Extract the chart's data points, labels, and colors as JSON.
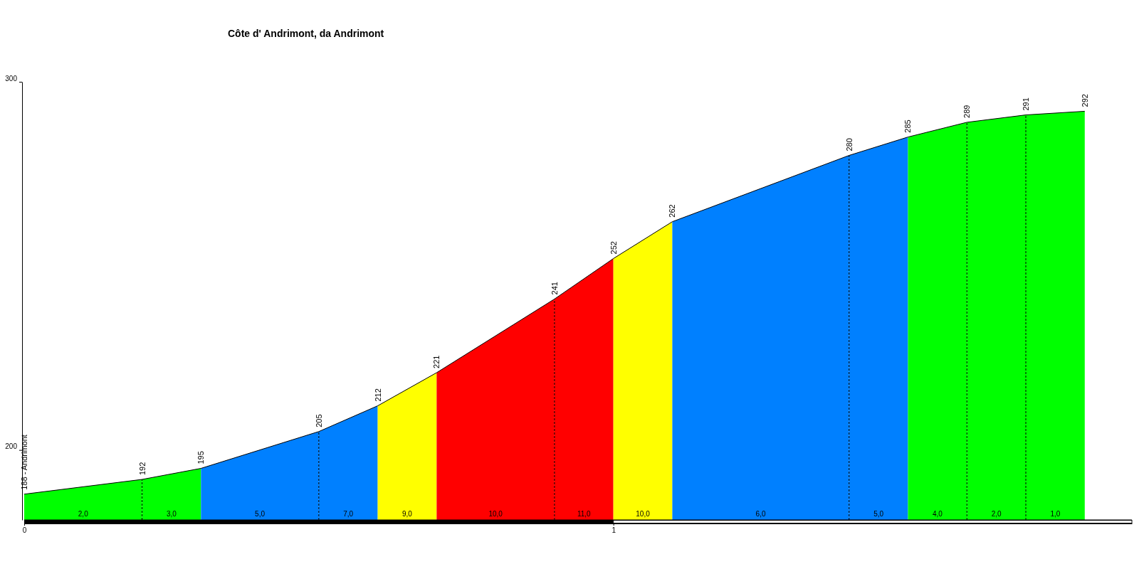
{
  "chart_data": {
    "type": "area",
    "title": "Côte d' Andrimont, da Andrimont",
    "xlim": [
      0,
      1.88
    ],
    "xticks": [
      0,
      1
    ],
    "ylim": [
      181,
      300
    ],
    "yticks": [
      200,
      300
    ],
    "grid": false,
    "series": [
      {
        "color": "#00ff00",
        "x": [
          0,
          0.2
        ],
        "values": [
          188,
          192
        ],
        "value_labels": [
          "188 - Andrimont",
          "192"
        ]
      },
      {
        "color": "#00ff00",
        "x": [
          0.2,
          0.3
        ],
        "values": [
          192,
          195
        ],
        "value_labels": [
          null,
          "195"
        ]
      },
      {
        "color": "#0080ff",
        "x": [
          0.3,
          0.5
        ],
        "values": [
          195,
          205
        ],
        "value_labels": [
          null,
          "205"
        ]
      },
      {
        "color": "#0080ff",
        "x": [
          0.5,
          0.6
        ],
        "values": [
          205,
          212
        ],
        "value_labels": [
          null,
          "212"
        ]
      },
      {
        "color": "#ffff00",
        "x": [
          0.6,
          0.7
        ],
        "values": [
          212,
          221
        ],
        "value_labels": [
          null,
          "221"
        ]
      },
      {
        "color": "#ff0000",
        "x": [
          0.7,
          0.9
        ],
        "values": [
          221,
          241
        ],
        "value_labels": [
          null,
          "241"
        ]
      },
      {
        "color": "#ff0000",
        "x": [
          0.9,
          1.0
        ],
        "values": [
          241,
          252
        ],
        "value_labels": [
          null,
          "252"
        ]
      },
      {
        "color": "#ffff00",
        "x": [
          1.0,
          1.1
        ],
        "values": [
          252,
          262
        ],
        "value_labels": [
          null,
          "262"
        ]
      },
      {
        "color": "#0080ff",
        "x": [
          1.1,
          1.4
        ],
        "values": [
          262,
          280
        ],
        "value_labels": [
          null,
          "280"
        ]
      },
      {
        "color": "#0080ff",
        "x": [
          1.4,
          1.5
        ],
        "values": [
          280,
          285
        ],
        "value_labels": [
          null,
          "285"
        ]
      },
      {
        "color": "#00ff00",
        "x": [
          1.5,
          1.6
        ],
        "values": [
          285,
          289
        ],
        "value_labels": [
          null,
          "289"
        ]
      },
      {
        "color": "#00ff00",
        "x": [
          1.6,
          1.7
        ],
        "values": [
          289,
          291
        ],
        "value_labels": [
          null,
          "291"
        ]
      },
      {
        "color": "#00ff00",
        "x": [
          1.7,
          1.8
        ],
        "values": [
          291,
          292
        ],
        "value_labels": [
          null,
          "292"
        ]
      }
    ],
    "ref_lines": [
      {
        "axis": "x",
        "value": 0.2,
        "color": "#000000",
        "line_style": "dashed"
      },
      {
        "axis": "x",
        "value": 0.5,
        "color": "#000000",
        "line_style": "dashed"
      },
      {
        "axis": "x",
        "value": 0.9,
        "color": "#000000",
        "line_style": "dashed"
      },
      {
        "axis": "x",
        "value": 1.4,
        "color": "#000000",
        "line_style": "dashed"
      },
      {
        "axis": "x",
        "value": 1.6,
        "color": "#000000",
        "line_style": "dashed"
      },
      {
        "axis": "x",
        "value": 1.7,
        "color": "#000000",
        "line_style": "dashed"
      }
    ],
    "annotations": [
      {
        "text": "2,0",
        "x": 0.1,
        "y": 182
      },
      {
        "text": "3,0",
        "x": 0.25,
        "y": 182
      },
      {
        "text": "5,0",
        "x": 0.4,
        "y": 182
      },
      {
        "text": "7,0",
        "x": 0.55,
        "y": 182
      },
      {
        "text": "9,0",
        "x": 0.65,
        "y": 182
      },
      {
        "text": "10,0",
        "x": 0.8,
        "y": 182
      },
      {
        "text": "11,0",
        "x": 0.95,
        "y": 182
      },
      {
        "text": "10,0",
        "x": 1.05,
        "y": 182
      },
      {
        "text": "6,0",
        "x": 1.25,
        "y": 182
      },
      {
        "text": "5,0",
        "x": 1.45,
        "y": 182
      },
      {
        "text": "4,0",
        "x": 1.55,
        "y": 182
      },
      {
        "text": "2,0",
        "x": 1.65,
        "y": 182
      },
      {
        "text": "1,0",
        "x": 1.75,
        "y": 182
      }
    ]
  }
}
